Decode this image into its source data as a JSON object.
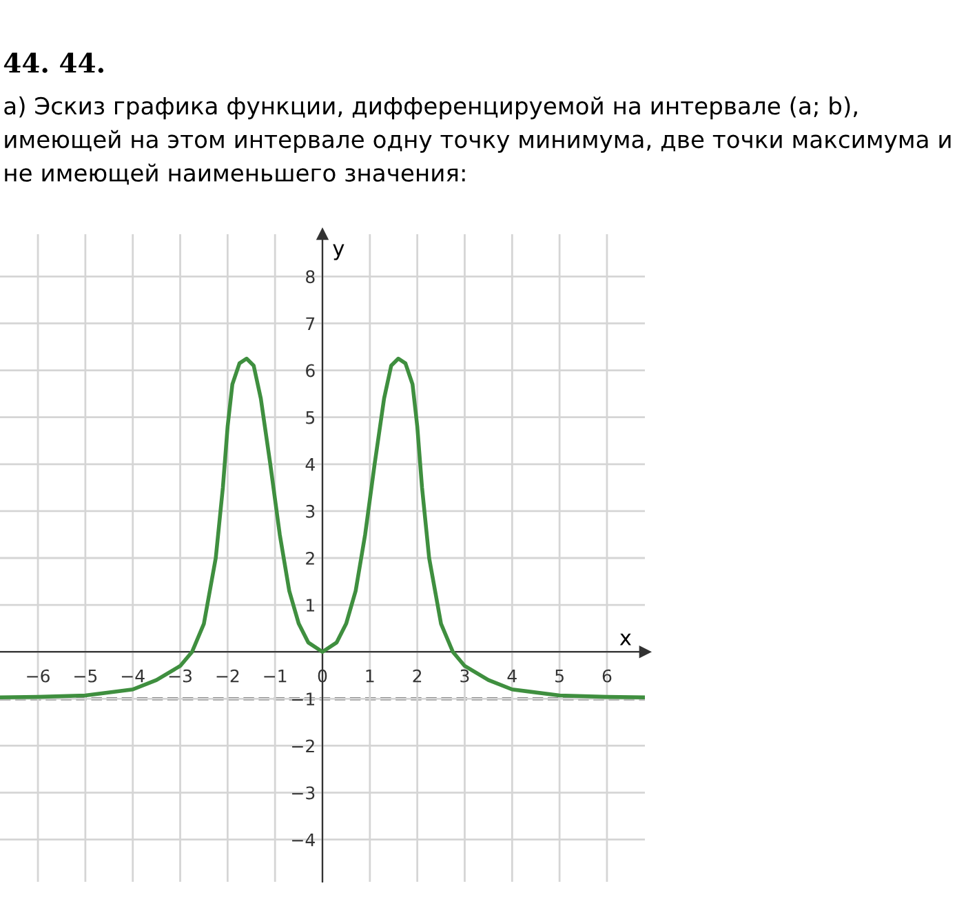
{
  "chart_data": {
    "type": "line",
    "title": "44. 44.",
    "subtitle": "а) Эскиз графика функции, дифференцируемой на интервале (a; b), имеющей на этом интервале одну точку минимума, две точки максимума и не имеющей наименьшего значения:",
    "xlabel": "x",
    "ylabel": "y",
    "series": [
      {
        "color": "#3f8f3f",
        "x": [
          -6.8,
          -6,
          -5,
          -4,
          -3.5,
          -3,
          -2.75,
          -2.5,
          -2.25,
          -2.1,
          -2,
          -1.9,
          -1.75,
          -1.6,
          -1.45,
          -1.3,
          -1.1,
          -0.9,
          -0.7,
          -0.5,
          -0.3,
          0,
          0.3,
          0.5,
          0.7,
          0.9,
          1.1,
          1.3,
          1.45,
          1.6,
          1.75,
          1.9,
          2,
          2.1,
          2.25,
          2.5,
          2.75,
          3,
          3.5,
          4,
          5,
          6,
          6.8
        ],
        "values": [
          -0.97,
          -0.96,
          -0.93,
          -0.8,
          -0.6,
          -0.3,
          0,
          0.6,
          2,
          3.5,
          4.8,
          5.7,
          6.15,
          6.25,
          6.1,
          5.4,
          4,
          2.5,
          1.3,
          0.6,
          0.2,
          0,
          0.2,
          0.6,
          1.3,
          2.5,
          4,
          5.4,
          6.1,
          6.25,
          6.15,
          5.7,
          4.8,
          3.5,
          2,
          0.6,
          0,
          -0.3,
          -0.6,
          -0.8,
          -0.93,
          -0.96,
          -0.97
        ]
      }
    ],
    "xlim": [
      -6.8,
      6.8
    ],
    "ylim": [
      -4.9,
      8.9
    ],
    "xticks": [
      -6,
      -5,
      -4,
      -3,
      -2,
      -1,
      0,
      1,
      2,
      3,
      4,
      5,
      6
    ],
    "yticks": [
      -4,
      -3,
      -2,
      -1,
      {
        "value": 0,
        "label": null
      },
      1,
      2,
      3,
      4,
      5,
      6,
      7,
      8
    ],
    "ref_lines": [
      {
        "axis": "y",
        "value": -1,
        "color": "#666666",
        "line_style": "dashed"
      }
    ],
    "grid": true,
    "marker": "none",
    "line_style": "solid"
  }
}
